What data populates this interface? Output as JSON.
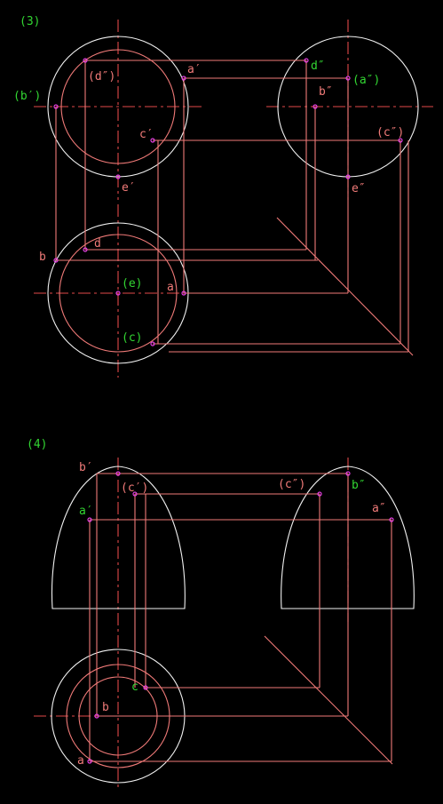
{
  "figure3": {
    "number": "(3)",
    "front_view": {
      "b_prime": "(b′)",
      "d_dprime": "(d″)",
      "a_prime": "a′",
      "c_prime": "c′",
      "e_prime": "e′"
    },
    "side_view": {
      "d_dprime": "d″",
      "a_dprime": "(a″)",
      "b_dprime": "b″",
      "c_dprime": "(c″)",
      "e_dprime": "e″"
    },
    "top_view": {
      "b": "b",
      "d": "d",
      "e": "(e)",
      "a": "a",
      "c": "(c)"
    }
  },
  "figure4": {
    "number": "(4)",
    "front_view": {
      "b_prime": "b′",
      "c_prime": "(c′)",
      "a_prime": "a′"
    },
    "side_view": {
      "c_dprime": "(c″)",
      "b_dprime": "b″",
      "a_dprime": "a″"
    },
    "top_view": {
      "c": "c",
      "b": "b",
      "a": "a"
    }
  }
}
